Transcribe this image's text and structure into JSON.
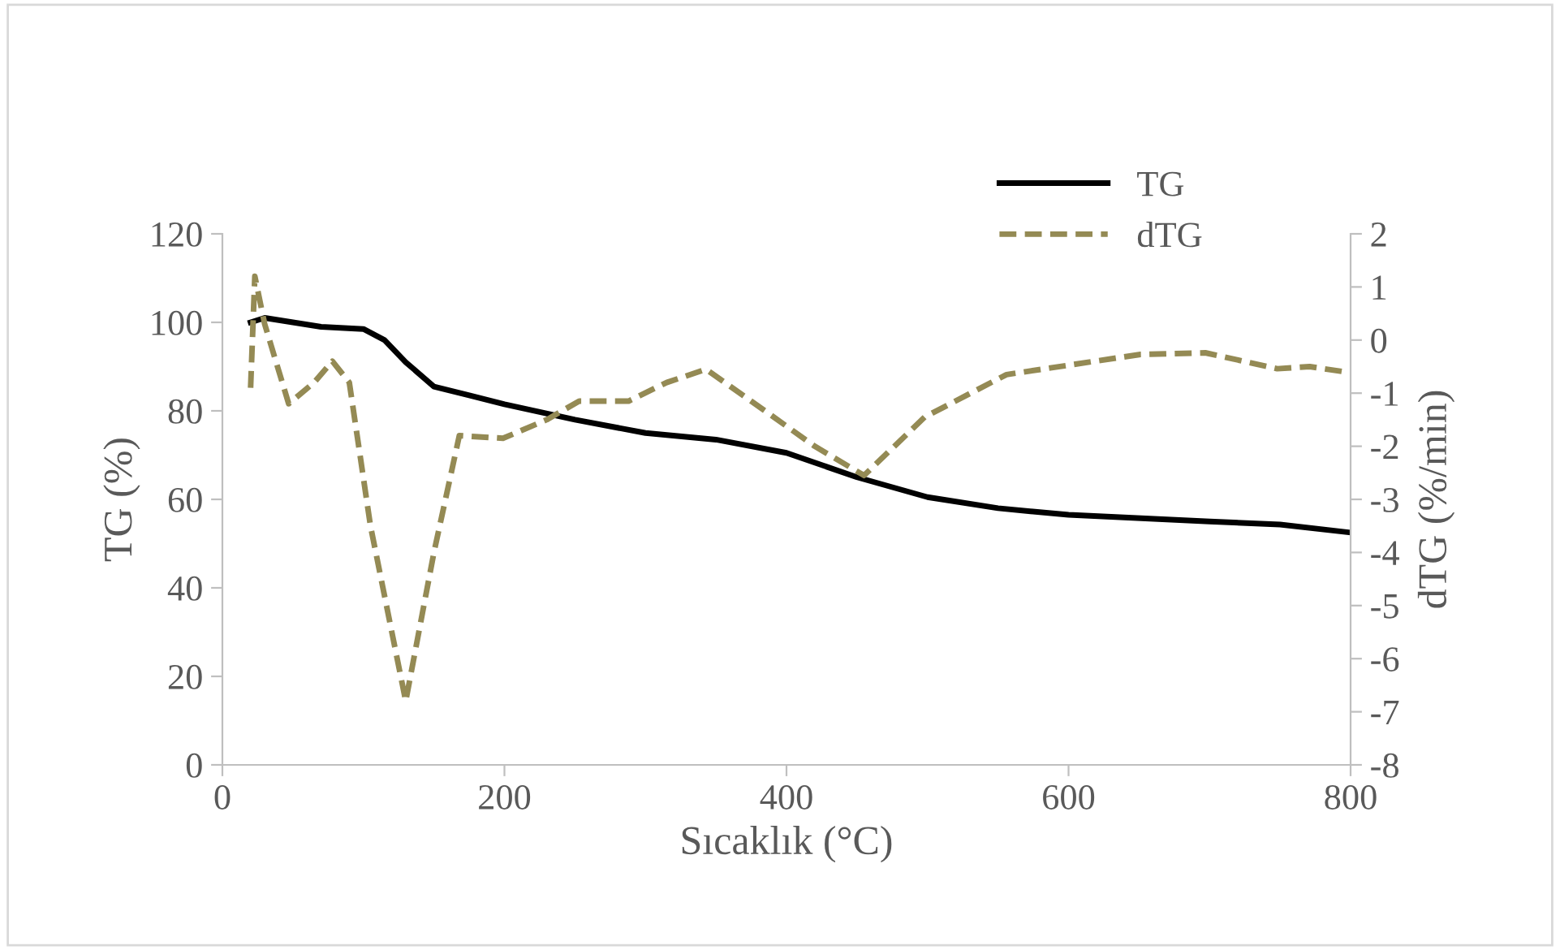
{
  "chart_data": {
    "type": "line",
    "xlabel": "Sıcaklık (°C)",
    "ylabel": "TG (%)",
    "y2label": "dTG (%/min)",
    "xlim": [
      0,
      800
    ],
    "xticks": [
      0,
      200,
      400,
      600,
      800
    ],
    "ylim": [
      0,
      120
    ],
    "yticks": [
      0,
      20,
      40,
      60,
      80,
      100,
      120
    ],
    "y2lim": [
      -8,
      2
    ],
    "y2ticks": [
      -8,
      -7,
      -6,
      -5,
      -4,
      -3,
      -2,
      -1,
      0,
      1,
      2
    ],
    "grid": false,
    "legend": "top right",
    "marker": "none",
    "series": [
      {
        "name": "TG",
        "color": "#000000",
        "line_style": "solid",
        "x": [
          20,
          30,
          50,
          70,
          100,
          115,
          130,
          150,
          175,
          200,
          250,
          300,
          350,
          400,
          450,
          500,
          550,
          600,
          700,
          750,
          800
        ],
        "values": [
          100,
          101,
          100,
          99,
          98.5,
          96,
          91,
          85.5,
          83.5,
          81.5,
          78,
          75,
          73.5,
          70.5,
          65,
          60.5,
          58,
          56.5,
          55,
          54.3,
          52.5
        ]
      },
      {
        "name": "dTG",
        "color": "#948a54",
        "line_style": "dashed",
        "axis": "y2",
        "x": [
          20,
          23,
          30,
          47,
          65,
          78,
          90,
          105,
          130,
          150,
          168,
          199,
          230,
          253,
          288,
          315,
          343,
          383,
          420,
          455,
          498,
          556,
          651,
          697,
          748,
          771,
          796
        ],
        "values": [
          -0.9,
          1.2,
          0.3,
          -1.2,
          -0.8,
          -0.4,
          -0.8,
          -3.5,
          -6.8,
          -4,
          -1.8,
          -1.85,
          -1.5,
          -1.15,
          -1.15,
          -0.8,
          -0.55,
          -1.3,
          -2,
          -2.55,
          -1.45,
          -0.65,
          -0.27,
          -0.24,
          -0.54,
          -0.5,
          -0.6
        ]
      }
    ]
  }
}
